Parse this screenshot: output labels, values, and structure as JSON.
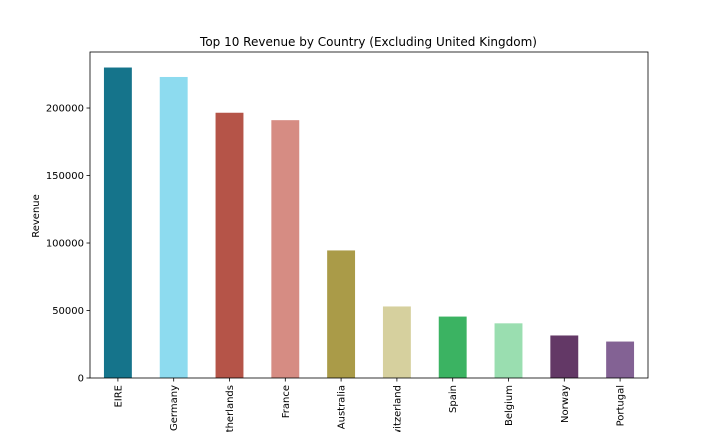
{
  "chart_data": {
    "type": "bar",
    "title": "Top 10 Revenue by Country (Excluding United Kingdom)",
    "xlabel": "",
    "ylabel": "Revenue",
    "categories": [
      "EIRE",
      "Germany",
      "Netherlands",
      "France",
      "Australia",
      "Switzerland",
      "Spain",
      "Belgium",
      "Norway",
      "Portugal"
    ],
    "values": [
      230000,
      223000,
      196500,
      191000,
      94500,
      53000,
      45500,
      40500,
      31500,
      27000
    ],
    "colors": [
      "#15748b",
      "#8ddbef",
      "#b55448",
      "#d68c83",
      "#aa9b48",
      "#d6d09e",
      "#3bb362",
      "#9adeb0",
      "#633866",
      "#836294"
    ],
    "ylim": [
      0,
      241500
    ],
    "yticks": [
      0,
      50000,
      100000,
      150000,
      200000
    ],
    "ytick_labels": [
      "0",
      "50000",
      "100000",
      "150000",
      "200000"
    ],
    "grid": false,
    "legend": "none"
  }
}
